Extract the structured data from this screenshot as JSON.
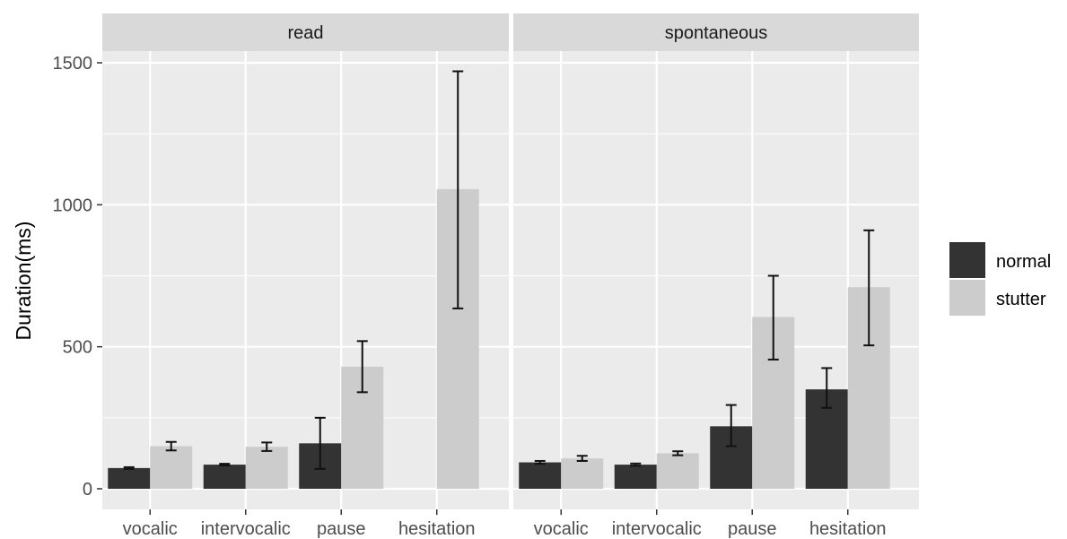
{
  "chart_data": {
    "type": "bar",
    "ylabel": "Duration(ms)",
    "xlabel": "",
    "ylim": [
      0,
      1600
    ],
    "yticks": [
      0,
      500,
      1000,
      1500
    ],
    "categories": [
      "vocalic",
      "intervocalic",
      "pause",
      "hesitation"
    ],
    "legend": {
      "position": "right",
      "entries": [
        "normal",
        "stutter"
      ]
    },
    "grid": true,
    "colors": {
      "normal": "#333333",
      "stutter": "#cccccc",
      "panel": "#ebebeb",
      "strip": "#d9d9d9",
      "grid": "#ffffff"
    },
    "panels": [
      {
        "title": "read",
        "series": [
          {
            "name": "normal",
            "values": [
              73,
              85,
              160,
              null
            ],
            "err_low": [
              70,
              82,
              70,
              null
            ],
            "err_high": [
              76,
              88,
              250,
              null
            ]
          },
          {
            "name": "stutter",
            "values": [
              150,
              148,
              430,
              1055
            ],
            "err_low": [
              135,
              133,
              340,
              635
            ],
            "err_high": [
              165,
              163,
              520,
              1470
            ]
          }
        ]
      },
      {
        "title": "spontaneous",
        "series": [
          {
            "name": "normal",
            "values": [
              93,
              85,
              220,
              350
            ],
            "err_low": [
              88,
              81,
              150,
              285
            ],
            "err_high": [
              98,
              89,
              295,
              425
            ]
          },
          {
            "name": "stutter",
            "values": [
              107,
              125,
              605,
              710
            ],
            "err_low": [
              98,
              118,
              455,
              505
            ],
            "err_high": [
              116,
              132,
              750,
              910
            ]
          }
        ]
      }
    ]
  }
}
